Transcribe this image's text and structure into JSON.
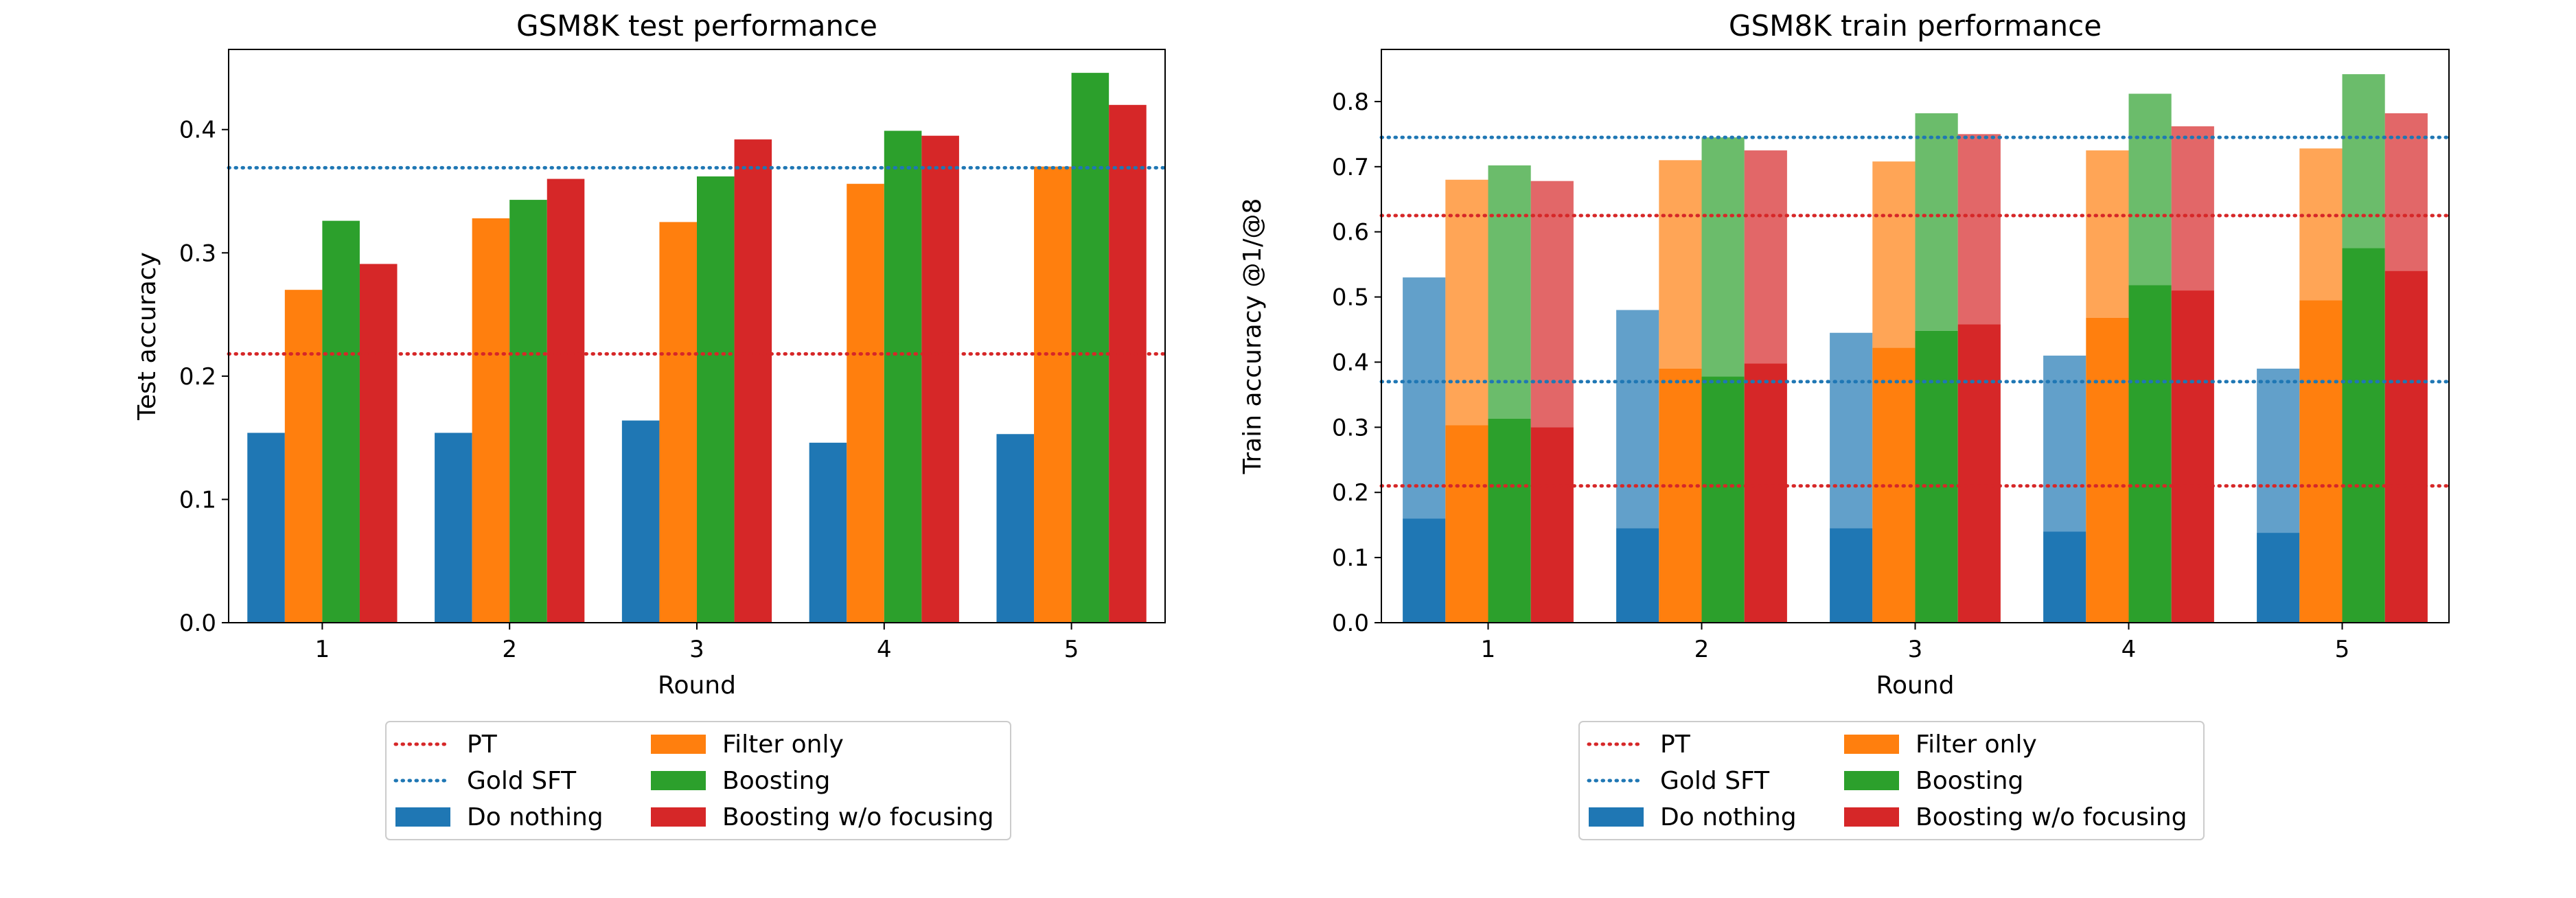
{
  "colors": {
    "do_nothing": "#1f77b4",
    "filter_only": "#ff7f0e",
    "boosting": "#2ca02c",
    "boosting_wo_focusing": "#d62728",
    "pt_line": "#d62728",
    "gold_sft_line": "#1f77b4"
  },
  "chart_data": [
    {
      "type": "bar",
      "title": "GSM8K test performance",
      "xlabel": "Round",
      "ylabel": "Test accuracy",
      "categories": [
        "1",
        "2",
        "3",
        "4",
        "5"
      ],
      "ylim": [
        0,
        0.465
      ],
      "yticks": [
        "0.0",
        "0.1",
        "0.2",
        "0.3",
        "0.4"
      ],
      "series": [
        {
          "name": "Do nothing",
          "values": [
            0.154,
            0.154,
            0.164,
            0.146,
            0.153
          ]
        },
        {
          "name": "Filter only",
          "values": [
            0.27,
            0.328,
            0.325,
            0.356,
            0.37
          ]
        },
        {
          "name": "Boosting",
          "values": [
            0.326,
            0.343,
            0.362,
            0.399,
            0.446
          ]
        },
        {
          "name": "Boosting w/o focusing",
          "values": [
            0.291,
            0.36,
            0.392,
            0.395,
            0.42
          ]
        }
      ],
      "reference_lines": [
        {
          "name": "PT",
          "value": 0.218
        },
        {
          "name": "Gold SFT",
          "value": 0.369
        }
      ],
      "legend": {
        "placement": "below",
        "entries": [
          "PT",
          "Gold SFT",
          "Do nothing",
          "Filter only",
          "Boosting",
          "Boosting w/o focusing"
        ]
      }
    },
    {
      "type": "bar",
      "title": "GSM8K train performance",
      "xlabel": "Round",
      "ylabel": "Train accuracy @1/@8",
      "categories": [
        "1",
        "2",
        "3",
        "4",
        "5"
      ],
      "ylim": [
        0,
        0.88
      ],
      "yticks": [
        "0.0",
        "0.1",
        "0.2",
        "0.3",
        "0.4",
        "0.5",
        "0.6",
        "0.7",
        "0.8"
      ],
      "series": [
        {
          "name": "Do nothing",
          "values_at1": [
            0.16,
            0.145,
            0.145,
            0.14,
            0.138
          ],
          "values_at8": [
            0.53,
            0.48,
            0.445,
            0.41,
            0.39
          ]
        },
        {
          "name": "Filter only",
          "values_at1": [
            0.303,
            0.39,
            0.422,
            0.468,
            0.495
          ],
          "values_at8": [
            0.68,
            0.71,
            0.708,
            0.725,
            0.728
          ]
        },
        {
          "name": "Boosting",
          "values_at1": [
            0.313,
            0.378,
            0.448,
            0.518,
            0.575
          ],
          "values_at8": [
            0.702,
            0.745,
            0.782,
            0.812,
            0.842
          ]
        },
        {
          "name": "Boosting w/o focusing",
          "values_at1": [
            0.3,
            0.398,
            0.458,
            0.51,
            0.54
          ],
          "values_at8": [
            0.678,
            0.725,
            0.75,
            0.762,
            0.782
          ]
        }
      ],
      "reference_lines": [
        {
          "name": "PT",
          "value": 0.21
        },
        {
          "name": "PT",
          "value": 0.625
        },
        {
          "name": "Gold SFT",
          "value": 0.37
        },
        {
          "name": "Gold SFT",
          "value": 0.745
        }
      ],
      "legend": {
        "placement": "below",
        "entries": [
          "PT",
          "Gold SFT",
          "Do nothing",
          "Filter only",
          "Boosting",
          "Boosting w/o focusing"
        ]
      }
    }
  ]
}
